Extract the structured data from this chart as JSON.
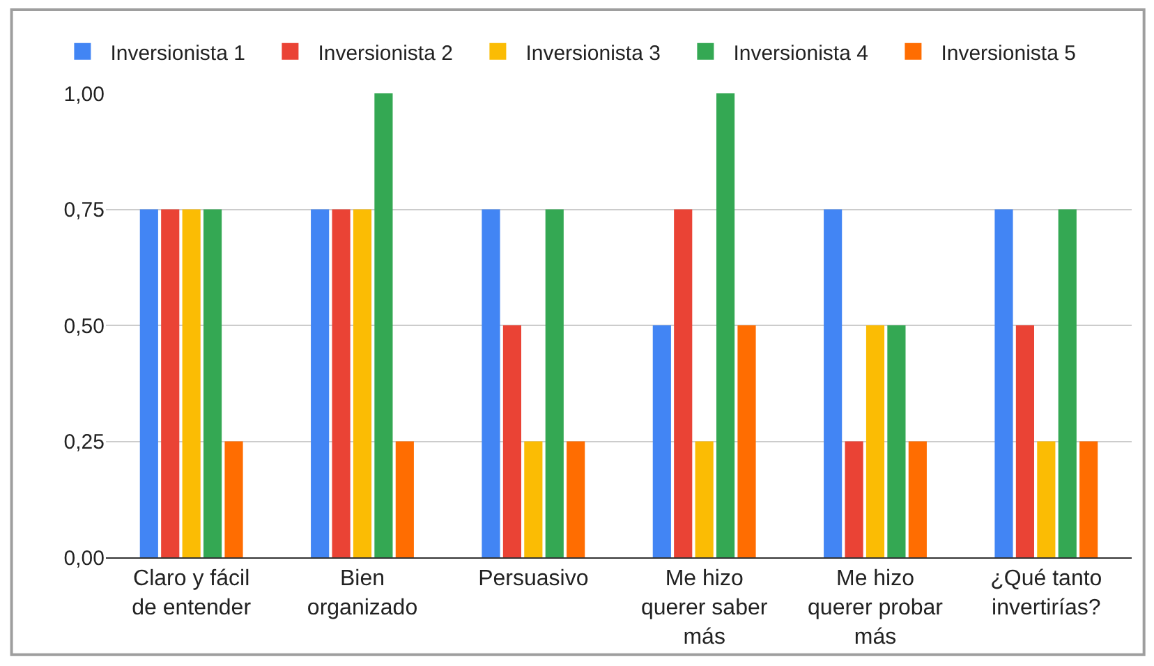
{
  "chart_data": {
    "type": "bar",
    "categories": [
      "Claro y fácil de entender",
      "Bien organizado",
      "Persuasivo",
      "Me hizo querer saber más",
      "Me hizo querer probar más",
      "¿Qué tanto invertirías?"
    ],
    "series": [
      {
        "name": "Inversionista 1",
        "color": "#4285f4",
        "values": [
          0.75,
          0.75,
          0.75,
          0.5,
          0.75,
          0.75
        ]
      },
      {
        "name": "Inversionista 2",
        "color": "#ea4335",
        "values": [
          0.75,
          0.75,
          0.5,
          0.75,
          0.25,
          0.5
        ]
      },
      {
        "name": "Inversionista 3",
        "color": "#fbbc04",
        "values": [
          0.75,
          0.75,
          0.25,
          0.25,
          0.5,
          0.25
        ]
      },
      {
        "name": "Inversionista 4",
        "color": "#34a853",
        "values": [
          0.75,
          1.0,
          0.75,
          1.0,
          0.5,
          0.75
        ]
      },
      {
        "name": "Inversionista 5",
        "color": "#ff6d01",
        "values": [
          0.25,
          0.25,
          0.25,
          0.5,
          0.25,
          0.25
        ]
      }
    ],
    "ylim": [
      0,
      1
    ],
    "yticks": [
      {
        "value": 0,
        "label": "0,00"
      },
      {
        "value": 0.25,
        "label": "0,25"
      },
      {
        "value": 0.5,
        "label": "0,50"
      },
      {
        "value": 0.75,
        "label": "0,75"
      },
      {
        "value": 1,
        "label": "1,00"
      }
    ],
    "grid": "y",
    "legend": "top"
  }
}
